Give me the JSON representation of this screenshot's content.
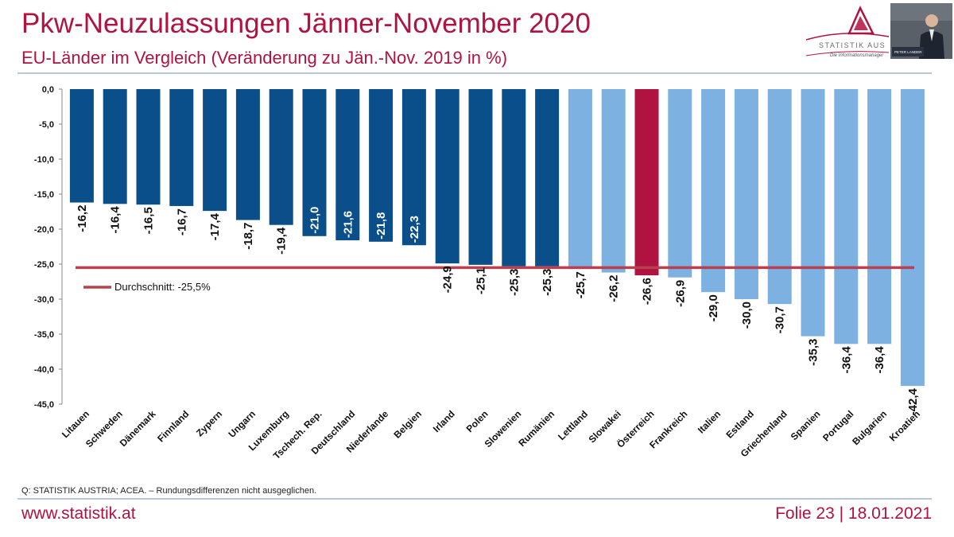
{
  "header": {
    "title": "Pkw-Neuzulassungen Jänner-November 2020",
    "subtitle": "EU-Länder im Vergleich (Veränderung zu Jän.-Nov. 2019 in %)"
  },
  "logo": {
    "text": "STATISTIK AUS",
    "tagline": "Die Informationsmanager"
  },
  "video": {
    "caption": "PETER LANDER"
  },
  "colors": {
    "brand": "#b0133f",
    "bar_dark": "#0b4f8a",
    "bar_light": "#7db1e1",
    "bar_highlight": "#b0133f",
    "average_line": "#b9414f"
  },
  "chart_data": {
    "type": "bar",
    "title": "Pkw-Neuzulassungen Jänner-November 2020",
    "subtitle": "EU-Länder im Vergleich (Veränderung zu Jän.-Nov. 2019 in %)",
    "categories": [
      "Litauen",
      "Schweden",
      "Dänemark",
      "Finnland",
      "Zypern",
      "Ungarn",
      "Luxemburg",
      "Tschech. Rep.",
      "Deutschland",
      "Niederlande",
      "Belgien",
      "Irland",
      "Polen",
      "Slowenien",
      "Rumänien",
      "Lettland",
      "Slowakei",
      "Österreich",
      "Frankreich",
      "Italien",
      "Estland",
      "Griechenland",
      "Spanien",
      "Portugal",
      "Bulgarien",
      "Kroatien"
    ],
    "values": [
      -16.2,
      -16.4,
      -16.5,
      -16.7,
      -17.4,
      -18.7,
      -19.4,
      -21.0,
      -21.6,
      -21.8,
      -22.3,
      -24.9,
      -25.1,
      -25.3,
      -25.3,
      -25.7,
      -26.2,
      -26.6,
      -26.9,
      -29.0,
      -30.0,
      -30.7,
      -35.3,
      -36.4,
      -36.4,
      -42.4
    ],
    "value_labels": [
      "-16,2",
      "-16,4",
      "-16,5",
      "-16,7",
      "-17,4",
      "-18,7",
      "-19,4",
      "-21,0",
      "-21,6",
      "-21,8",
      "-22,3",
      "-24,9",
      "-25,1",
      "-25,3",
      "-25,3",
      "-25,7",
      "-26,2",
      "-26,6",
      "-26,9",
      "-29,0",
      "-30,0",
      "-30,7",
      "-35,3",
      "-36,4",
      "-36,4",
      "-42,4"
    ],
    "bar_groups": [
      "above",
      "above",
      "above",
      "above",
      "above",
      "above",
      "above",
      "above",
      "above",
      "above",
      "above",
      "above",
      "above",
      "above",
      "above",
      "below",
      "below",
      "highlight",
      "below",
      "below",
      "below",
      "below",
      "below",
      "below",
      "below",
      "below"
    ],
    "average": {
      "value": -25.5,
      "label": "Durchschnitt: -25,5%"
    },
    "ylim": [
      -45,
      0
    ],
    "y_ticks": [
      0,
      -5,
      -10,
      -15,
      -20,
      -25,
      -30,
      -35,
      -40,
      -45
    ],
    "y_tick_labels": [
      "0,0",
      "-5,0",
      "-10,0",
      "-15,0",
      "-20,0",
      "-25,0",
      "-30,0",
      "-35,0",
      "-40,0",
      "-45,0"
    ],
    "xlabel": "",
    "ylabel": "",
    "grid": false,
    "legend": "inside-left"
  },
  "footer": {
    "source": "Q: STATISTIK AUSTRIA; ACEA. – Rundungsdifferenzen nicht ausgeglichen.",
    "website": "www.statistik.at",
    "slide": "Folie 23 | 18.01.2021"
  }
}
